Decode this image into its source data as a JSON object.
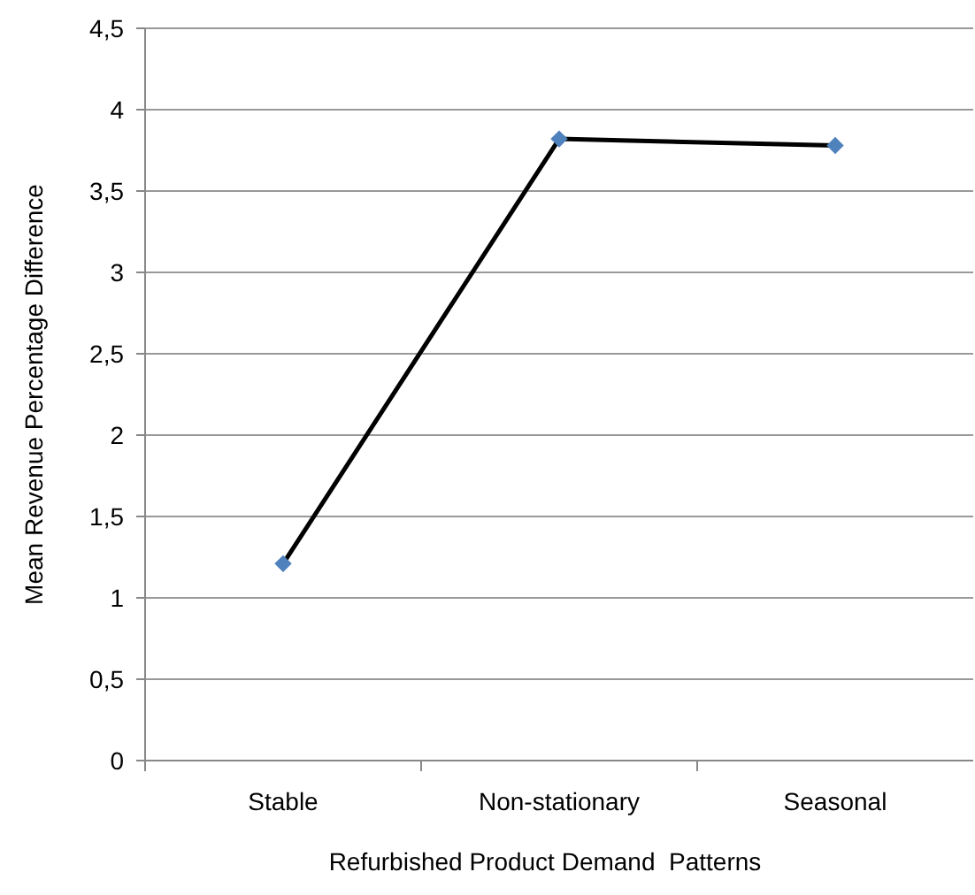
{
  "chart_data": {
    "type": "line",
    "xlabel": "Refurbished Product Demand  Patterns",
    "ylabel": "Mean Revenue Percentage Difference",
    "categories": [
      "Stable",
      "Non-stationary",
      "Seasonal"
    ],
    "series": [
      {
        "color": "#000000",
        "values": [
          1.21,
          3.82,
          3.78
        ]
      }
    ],
    "marker": "diamond",
    "colors": [
      "#4f81bd",
      "#4f81bd",
      "#4f81bd"
    ],
    "line_style": "solid",
    "ylim": [
      0,
      4.5
    ],
    "yticks": [
      0,
      {
        "value": 0.5,
        "label": "0,5"
      },
      1,
      {
        "value": 1.5,
        "label": "1,5"
      },
      2,
      {
        "value": 2.5,
        "label": "2,5"
      },
      3,
      {
        "value": 3.5,
        "label": "3,5"
      },
      4,
      {
        "value": 4.5,
        "label": "4,5"
      }
    ],
    "grid": "y"
  }
}
